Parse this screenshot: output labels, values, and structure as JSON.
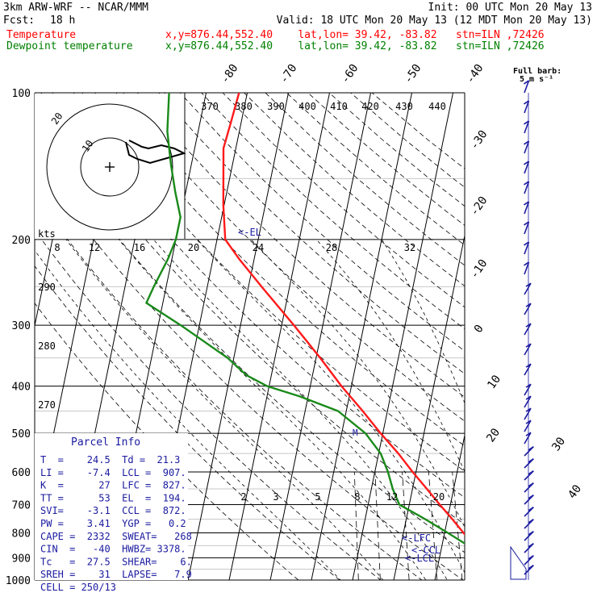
{
  "header": {
    "model": "3km ARW-WRF -- NCAR/MMM",
    "init": "Init: 00 UTC Mon 20 May 13",
    "fcst_label": "Fcst:",
    "fcst_value": "18 h",
    "valid": "Valid: 18 UTC Mon 20 May 13 (12 MDT Mon 20 May 13)",
    "temp_label": "Temperature",
    "temp_info": "x,y=876.44,552.40    lat,lon= 39.42, -83.82   stn=ILN ,72426",
    "dew_label": "Dewpoint temperature",
    "dew_info": "x,y=876.44,552.40    lat,lon= 39.42, -83.82   stn=ILN ,72426"
  },
  "colors": {
    "temperature": "#ff1a1a",
    "dewpoint": "#1a8a1a",
    "header_temp": "#ff0000",
    "header_dew": "#008000",
    "blue": "#1a1aa0"
  },
  "wind_key": {
    "line1": "Full barb:",
    "line2": "5 m s⁻¹"
  },
  "hodograph": {
    "unit": "kts",
    "rings": [
      "10",
      "20"
    ],
    "speed_labels": [
      "8",
      "12",
      "16",
      "20",
      "24",
      "28",
      "32"
    ]
  },
  "theta_labels": [
    "370",
    "380",
    "390",
    "400",
    "410",
    "420",
    "430",
    "440"
  ],
  "thetae_labels": [
    "290",
    "280",
    "270"
  ],
  "mixing_ratio_labels": [
    "2",
    "3",
    "5",
    "8",
    "12",
    "20"
  ],
  "markers": {
    "el": "<-EL",
    "lfc": "<-LFC",
    "ccl": "<-CCL",
    "lcl": "<-LCL",
    "m": "M"
  },
  "parcel_info": {
    "title": "Parcel Info",
    "rows": [
      "T  =    24.5  Td =  21.3",
      "LI =    -7.4  LCL =  907.",
      "K  =      27  LFC =  827.",
      "TT =      53  EL  =  194.",
      "SVI=    -3.1  CCL =  872.",
      "PW =    3.41  YGP =   0.2",
      "CAPE =  2332  SWEAT=   268",
      "CIN  =   -40  HWBZ= 3378.",
      "Tc   =  27.5  SHEAR=    6.",
      "SREH =    31  LAPSE=   7.9",
      "CELL = 250/13"
    ]
  },
  "chart_data": {
    "type": "line",
    "title": "",
    "ylabel": "",
    "xlabel": "",
    "y_scale": "log-pressure",
    "pressure_ticks": [
      100,
      200,
      300,
      400,
      500,
      600,
      700,
      800,
      900,
      1000
    ],
    "temp_ticks_top": [
      -80,
      -70,
      -60,
      -50,
      -40
    ],
    "temp_ticks_right": [
      -30,
      -20,
      -10,
      0,
      10,
      20,
      30,
      40
    ],
    "series": [
      {
        "name": "Temperature",
        "p": [
          955,
          925,
          900,
          870,
          850,
          800,
          750,
          700,
          650,
          600,
          550,
          500,
          450,
          400,
          350,
          300,
          250,
          220,
          200,
          170,
          150,
          130,
          115,
          100
        ],
        "t": [
          26.5,
          24.0,
          22.0,
          19.8,
          18.2,
          14.6,
          11.2,
          7.4,
          3.5,
          -0.8,
          -5.2,
          -10.5,
          -16.0,
          -22.4,
          -29.0,
          -37.0,
          -46.8,
          -53.5,
          -58.0,
          -60.2,
          -61.5,
          -63.0,
          -62.5,
          -62.0
        ]
      },
      {
        "name": "Dewpoint temperature",
        "p": [
          950,
          925,
          900,
          870,
          850,
          800,
          750,
          700,
          650,
          600,
          550,
          500,
          450,
          420,
          400,
          380,
          350,
          300,
          270,
          250,
          220,
          200,
          180,
          160,
          140,
          120,
          100
        ],
        "t": [
          22.3,
          21.6,
          20.8,
          18.4,
          16.4,
          10.8,
          4.6,
          -2.4,
          -4.8,
          -6.8,
          -9.5,
          -14.2,
          -22.0,
          -32.0,
          -40.5,
          -46.0,
          -51.5,
          -64.5,
          -74.0,
          -73.0,
          -71.0,
          -70.0,
          -70.0,
          -72.5,
          -75.0,
          -77.5,
          -79.0
        ]
      }
    ],
    "grid": true
  }
}
